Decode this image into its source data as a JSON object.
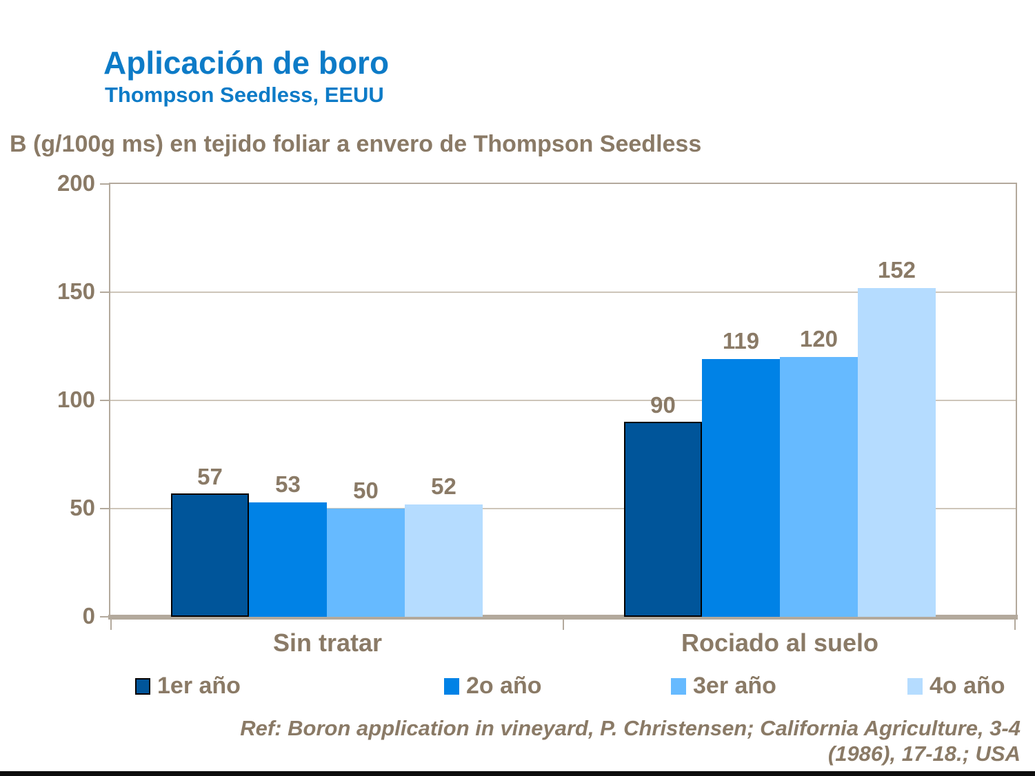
{
  "slide": {
    "title": "Aplicación de boro",
    "subtitle": "Thompson Seedless, EEUU",
    "reference_line1": "Ref: Boron application in vineyard, P. Christensen; California Agriculture, 3-4",
    "reference_line2": "(1986), 17-18.; USA"
  },
  "colors": {
    "title_blue": "#0d7bc7",
    "text_brown": "#8a7a66",
    "axis_frame": "#b3a99c",
    "gridline": "#cdc5b9",
    "bottom_strip": "#0d0d0d",
    "series_1": "#00559a",
    "series_2": "#0082e6",
    "series_3": "#66baff",
    "series_4": "#b5dcff"
  },
  "chart_data": {
    "type": "bar",
    "title": "B (g/100g ms) en tejido foliar a envero de Thompson Seedless",
    "categories": [
      "Sin tratar",
      "Rociado al suelo"
    ],
    "series": [
      {
        "name": "1er año",
        "color": "#00559a",
        "border": "#000000",
        "values": [
          57,
          90
        ]
      },
      {
        "name": "2o año",
        "color": "#0082e6",
        "border": null,
        "values": [
          53,
          119
        ]
      },
      {
        "name": "3er año",
        "color": "#66baff",
        "border": null,
        "values": [
          50,
          120
        ]
      },
      {
        "name": "4o año",
        "color": "#b5dcff",
        "border": null,
        "values": [
          52,
          152
        ]
      }
    ],
    "ylim": [
      0,
      200
    ],
    "yticks": [
      0,
      50,
      100,
      150,
      200
    ],
    "grid": true,
    "legend_position": "bottom",
    "xlabel": "",
    "ylabel": ""
  }
}
